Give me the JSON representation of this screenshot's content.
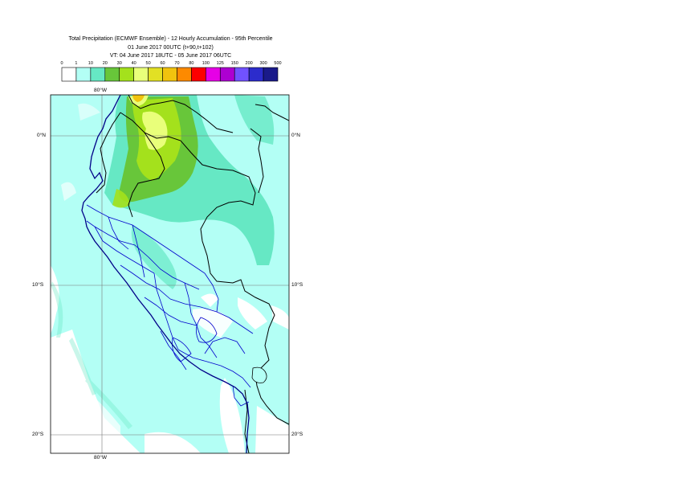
{
  "header": {
    "title": "Total Precipitation (ECMWF Ensemble) - 12 Hourly Accumulation - 95th Percentile",
    "base_time": "01 June 2017 00UTC (t+90,t+102)",
    "valid_time": "VT: 04 June 2017 18UTC - 05 June 2017 06UTC"
  },
  "legend": {
    "thresholds": [
      "0",
      "1",
      "10",
      "20",
      "30",
      "40",
      "50",
      "60",
      "70",
      "80",
      "100",
      "125",
      "150",
      "200",
      "300",
      "500"
    ],
    "colors": [
      "#ffffff",
      "#b3fff5",
      "#66e8c4",
      "#68c63a",
      "#a4e11c",
      "#e9ff7a",
      "#e2e024",
      "#f1c30e",
      "#fd8a00",
      "#fd0000",
      "#e600e6",
      "#ad00d1",
      "#7152ff",
      "#2c2ccc",
      "#1a1a8a"
    ]
  },
  "map": {
    "lon_labels": {
      "top": "80°W",
      "bottom": "80°W"
    },
    "lat_labels": {
      "n0_left": "0°N",
      "n0_right": "0°N",
      "s10_left": "10°S",
      "s10_right": "10°S",
      "s20_left": "20°S",
      "s20_right": "20°S"
    },
    "colors": {
      "ocean_base": "#b3fff5",
      "light_precip": "#66e8c4",
      "medium_precip": "#68c63a",
      "strong_precip": "#a4e11c",
      "heavy_precip": "#e9ff7a",
      "peak_precip": "#f1c30e",
      "dry_land": "#ffffff",
      "coastline": "#000000",
      "country_border": "#000000",
      "region_border": "#0000cc",
      "gridline": "#777777"
    }
  }
}
